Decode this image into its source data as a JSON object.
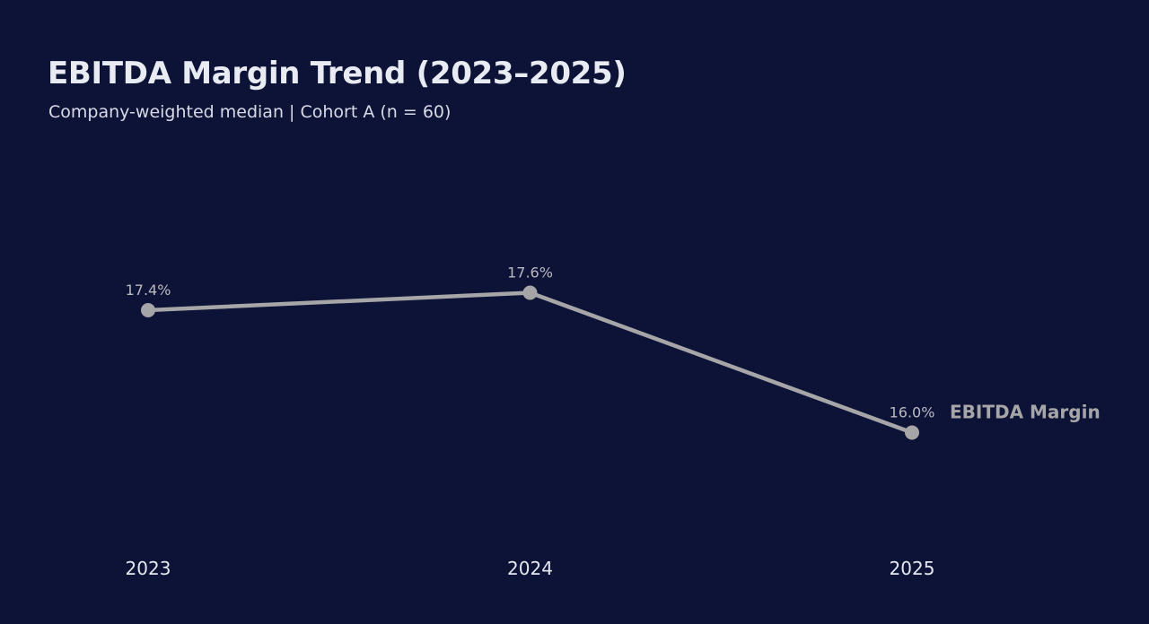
{
  "header": {
    "title": "EBITDA Margin Trend (2023–2025)",
    "subtitle": "Company-weighted median | Cohort A (n = 60)"
  },
  "colors": {
    "background": "#0d1337",
    "series": "#a6a6a8",
    "data_label": "#b9bac0",
    "tick_label": "#e6e8ef"
  },
  "chart_data": {
    "type": "line",
    "title": "EBITDA Margin Trend (2023–2025)",
    "subtitle": "Company-weighted median | Cohort A (n = 60)",
    "x": [
      "2023",
      "2024",
      "2025"
    ],
    "series": [
      {
        "name": "EBITDA Margin",
        "values": [
          17.4,
          17.6,
          16.0
        ],
        "data_labels": [
          "17.4%",
          "17.6%",
          "16.0%"
        ]
      }
    ],
    "xlabel": "",
    "ylabel": "",
    "ylim": [
      15.0,
      19.0
    ],
    "grid": false,
    "legend": "direct label at end of line"
  }
}
